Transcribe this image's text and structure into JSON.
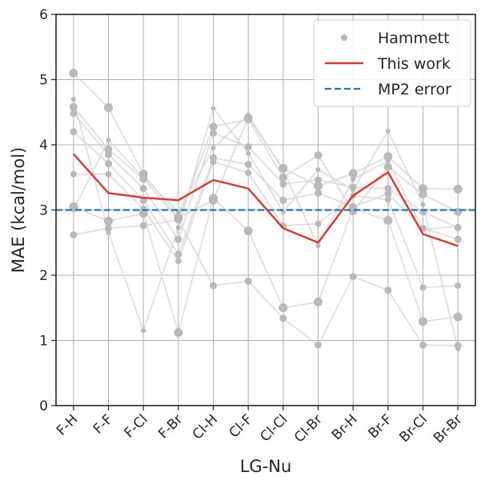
{
  "chart_data": {
    "type": "line",
    "xlabel": "LG-Nu",
    "ylabel": "MAE (kcal/mol)",
    "ylim": [
      0,
      6
    ],
    "yticks": [
      "0",
      "1",
      "2",
      "3",
      "4",
      "5",
      "6"
    ],
    "grid": true,
    "legend_position": "top-right",
    "categories": [
      "F-H",
      "F-F",
      "F-Cl",
      "F-Br",
      "Cl-H",
      "Cl-F",
      "Cl-Cl",
      "Cl-Br",
      "Br-H",
      "Br-F",
      "Br-Cl",
      "Br-Br"
    ],
    "series": [
      {
        "name": "This work",
        "kind": "line",
        "color": "#e3342f",
        "values": [
          3.86,
          3.26,
          3.19,
          3.15,
          3.46,
          3.33,
          2.72,
          2.5,
          3.22,
          3.58,
          2.63,
          2.45
        ]
      },
      {
        "name": "MP2 error",
        "kind": "hline",
        "color": "#1f77b4",
        "value": 3.0
      },
      {
        "name": "Hammett",
        "kind": "scatter",
        "color": "#b9b9b9",
        "lines": [
          [
            5.1,
            4.57,
            3.55,
            2.88,
            3.15,
            4.41,
            3.64,
            3.37,
            3.56,
            3.82,
            3.33,
            3.32
          ],
          [
            4.58,
            3.93,
            3.48,
            2.85,
            4.28,
            4.39,
            3.5,
            3.84,
            2.98,
            3.66,
            3.24,
            2.97
          ],
          [
            4.48,
            3.85,
            3.33,
            2.55,
            4.18,
            3.97,
            3.4,
            3.46,
            3.35,
            3.33,
            2.97,
            2.73
          ],
          [
            4.2,
            3.71,
            3.15,
            2.32,
            3.8,
            3.7,
            3.15,
            3.26,
            3.05,
            3.25,
            2.72,
            2.55
          ],
          [
            3.55,
            3.55,
            3.02,
            2.22,
            3.74,
            3.57,
            2.76,
            2.79,
            3.22,
            3.16,
            1.81,
            1.84
          ],
          [
            3.05,
            2.83,
            2.95,
            1.12,
            3.18,
            2.68,
            1.5,
            1.59,
            3.02,
            2.84,
            1.29,
            1.36
          ],
          [
            2.62,
            2.72,
            2.76,
            2.85,
            1.84,
            1.91,
            1.34,
            0.93,
            1.98,
            1.77,
            0.93,
            0.92
          ],
          [
            4.7,
            2.65,
            1.15,
            2.73,
            4.56,
            3.87,
            2.97,
            3.62,
            3.31,
            4.21,
            3.08,
            0.87
          ],
          [
            3.0,
            4.07,
            3.5,
            2.97,
            3.95,
            4.46,
            3.61,
            2.45,
            3.47,
            3.75,
            2.7,
            2.75
          ]
        ]
      }
    ]
  }
}
